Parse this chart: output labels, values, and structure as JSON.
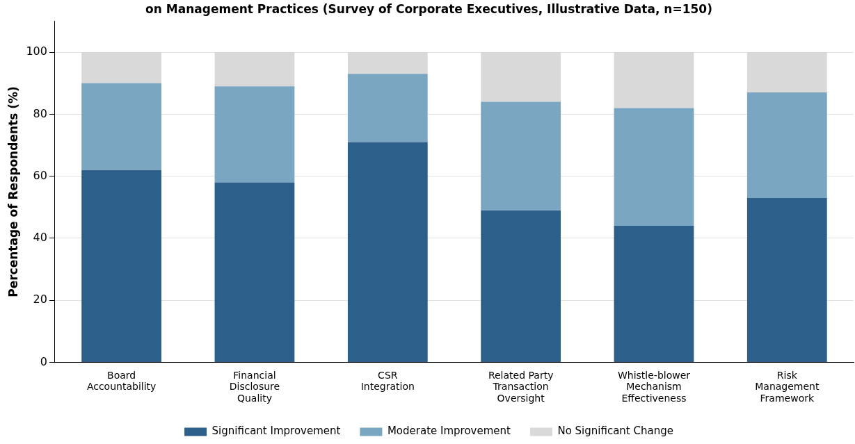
{
  "chart_data": {
    "type": "bar",
    "title": "on Management Practices (Survey of Corporate Executives, Illustrative Data, n=150)",
    "ylabel": "Percentage of Respondents (%)",
    "categories": [
      "Board Accountability",
      "Financial Disclosure Quality",
      "CSR Integration",
      "Related Party Transaction Oversight",
      "Whistle-blower Mechanism Effectiveness",
      "Risk Management Framework"
    ],
    "series": [
      {
        "name": "Significant Improvement",
        "color": "#2c5f8a",
        "values": [
          62,
          58,
          71,
          49,
          44,
          53
        ]
      },
      {
        "name": "Moderate Improvement",
        "color": "#7aa6c2",
        "values": [
          28,
          31,
          22,
          35,
          38,
          34
        ]
      },
      {
        "name": "No Significant Change",
        "color": "#d9d9d9",
        "values": [
          10,
          11,
          7,
          16,
          18,
          13
        ]
      }
    ],
    "stacked": true,
    "ylim": [
      0,
      110
    ],
    "yticks": [
      0,
      20,
      40,
      60,
      80,
      100
    ],
    "grid": "y",
    "legend": "bottom"
  }
}
